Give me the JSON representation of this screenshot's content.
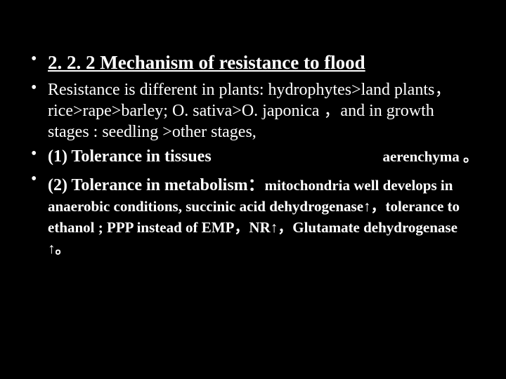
{
  "slide": {
    "background_color": "#000000",
    "text_color": "#ffffff",
    "font_family": "Times New Roman",
    "title": {
      "text": "2. 2. 2  Mechanism of resistance to flood",
      "fontsize": 27,
      "bold": true,
      "underline": true
    },
    "bullets": [
      {
        "text": "Resistance is different in plants: hydrophytes>land plants，rice>rape>barley; O. sativa>O. japonica ，and in growth stages : seedling >other stages,",
        "fontsize": 24,
        "bold": false
      },
      {
        "lead": "(1)  Tolerance in tissues",
        "note": "aerenchyma 。",
        "lead_fontsize": 24,
        "note_fontsize": 21,
        "bold": true
      },
      {
        "lead": "(2) Tolerance in metabolism：",
        "tail": "mitochondria well develops in anaerobic conditions, succinic acid dehydrogenase↑，tolerance to ethanol ; PPP instead of EMP，NR↑，Glutamate dehydrogenase ↑。",
        "lead_fontsize": 24,
        "tail_fontsize": 21,
        "bold": true
      }
    ]
  }
}
